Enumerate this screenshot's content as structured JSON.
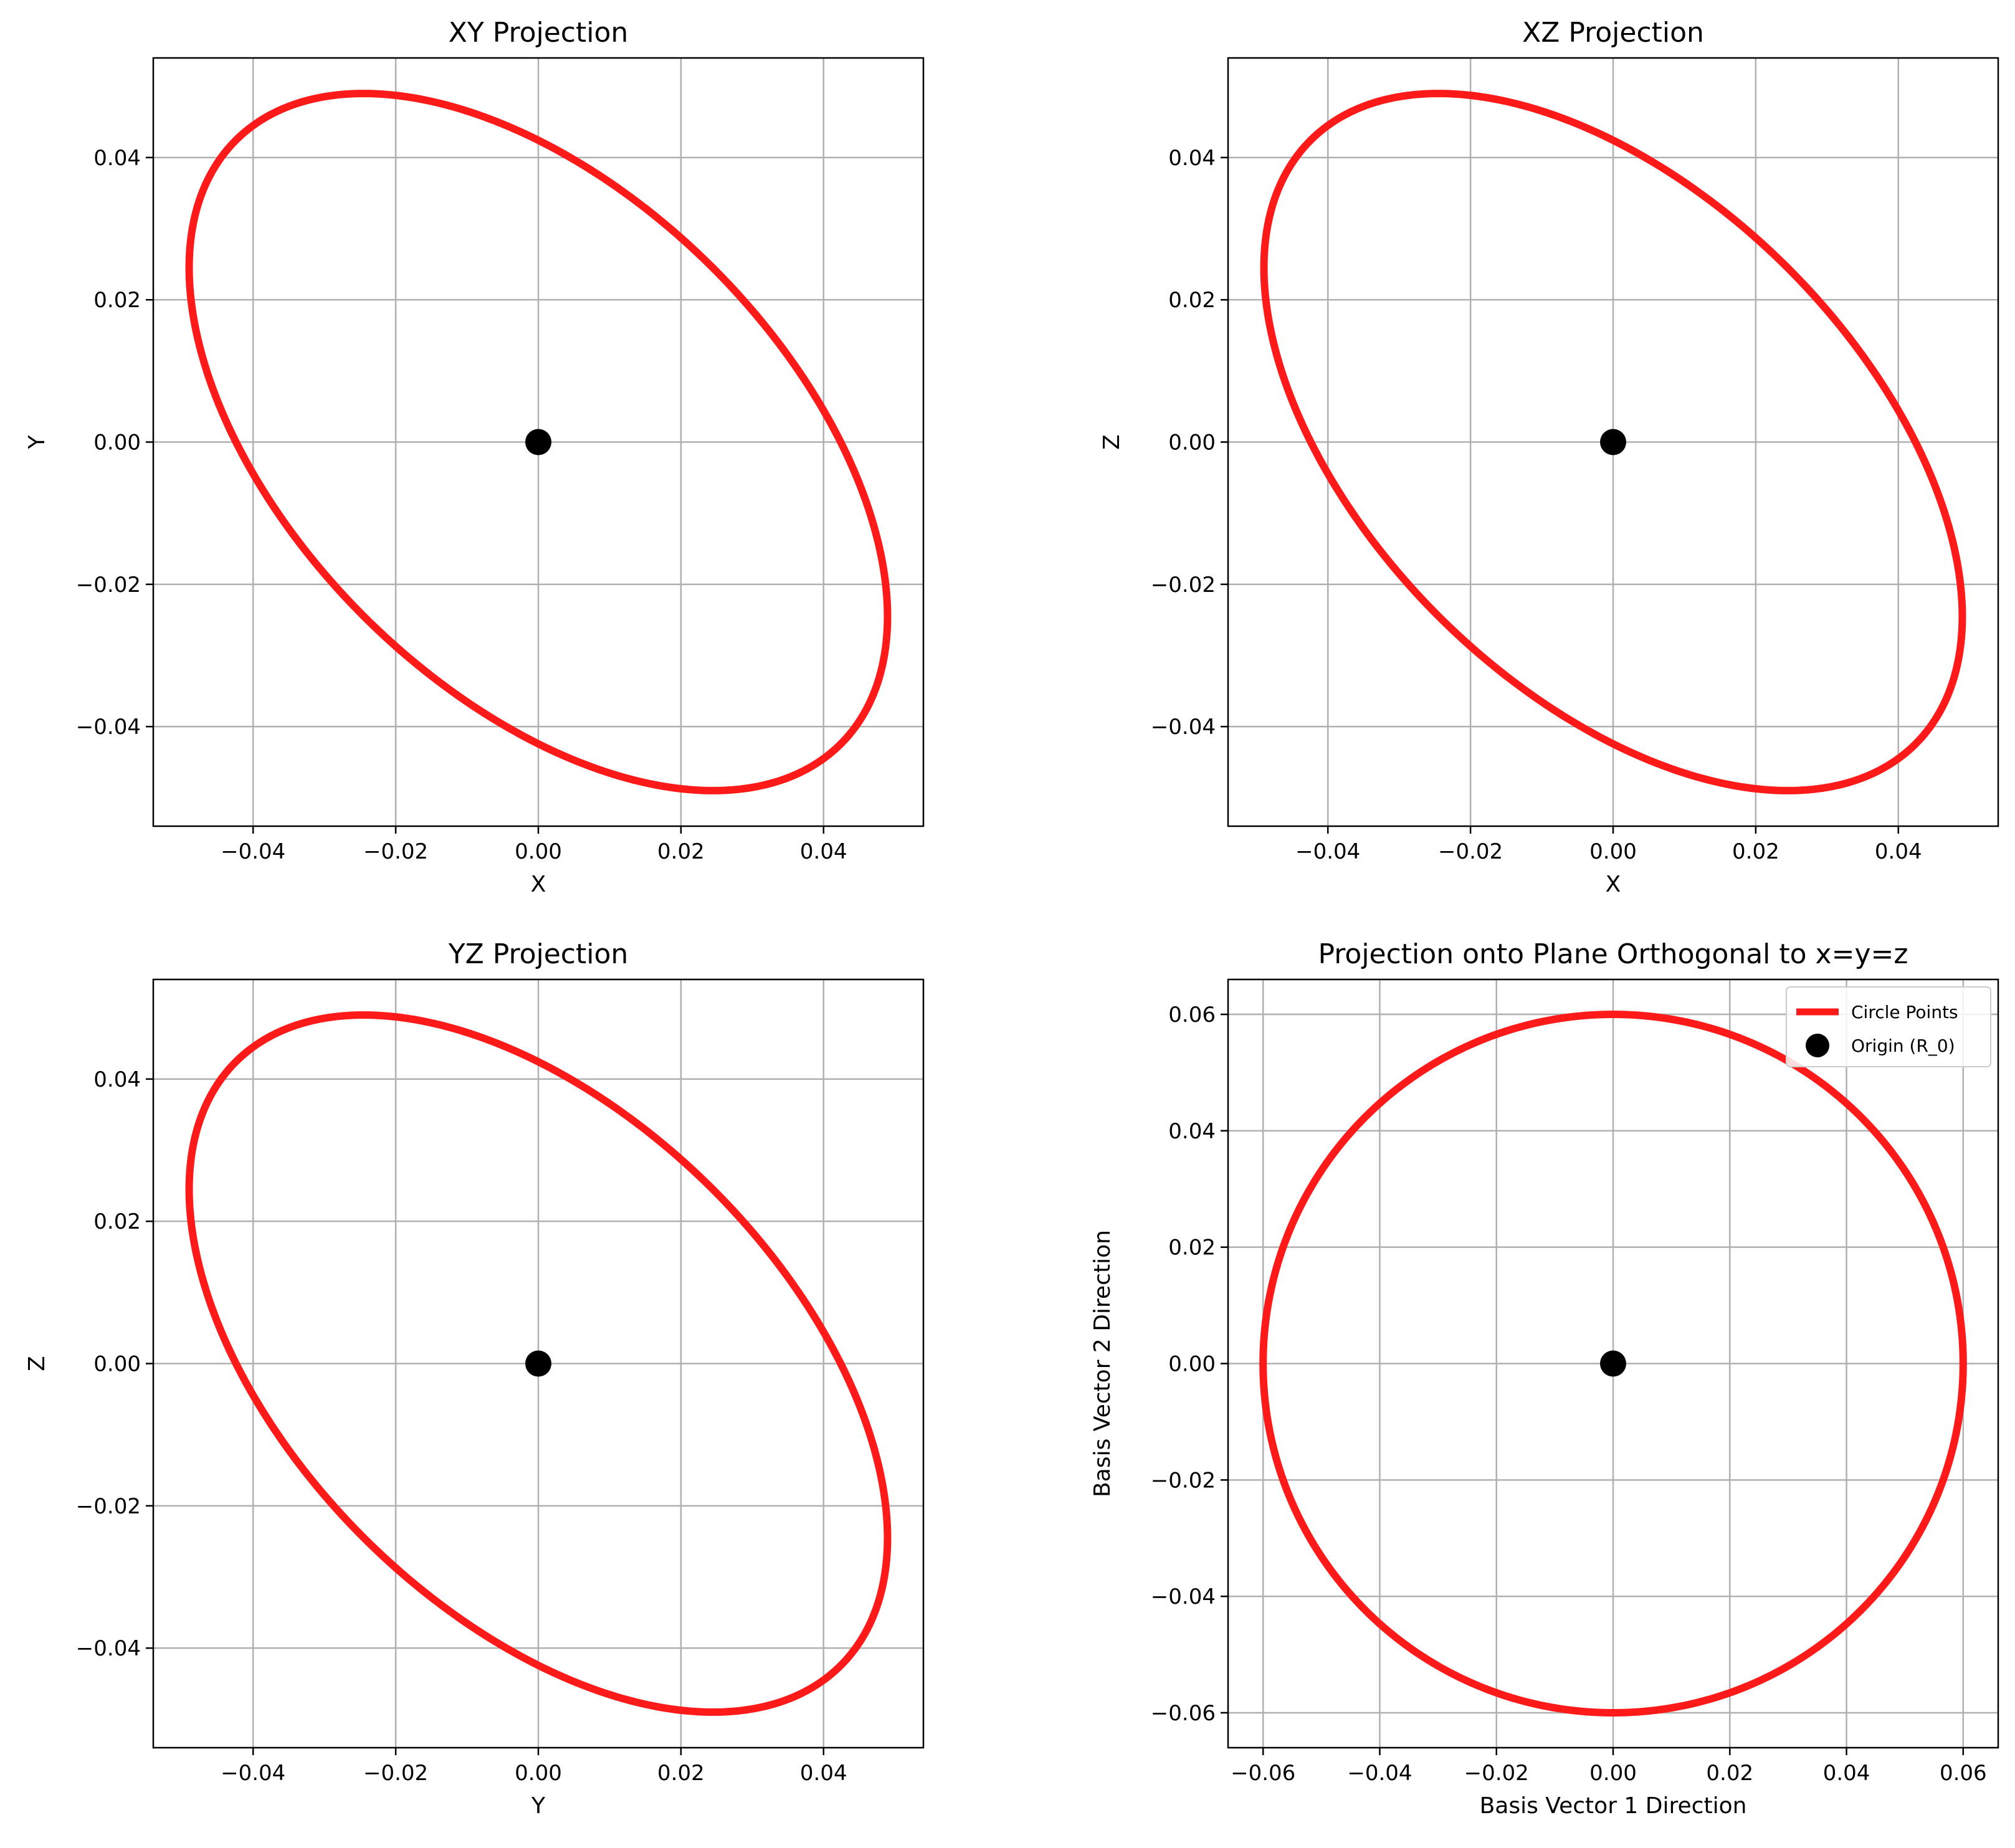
{
  "colors": {
    "curve": "#ff1a1a",
    "origin": "#000000",
    "grid": "#b0b0b0"
  },
  "chart_data": [
    {
      "type": "line",
      "title": "XY Projection",
      "xlabel": "X",
      "ylabel": "Y",
      "xlim": [
        -0.054,
        0.054
      ],
      "ylim": [
        -0.054,
        0.054
      ],
      "xticks": [
        -0.04,
        -0.02,
        0.0,
        0.02,
        0.04
      ],
      "yticks": [
        -0.04,
        -0.02,
        0.0,
        0.02,
        0.04
      ],
      "xtick_labels": [
        "−0.04",
        "−0.02",
        "0.00",
        "0.02",
        "0.04"
      ],
      "ytick_labels": [
        "−0.04",
        "−0.02",
        "0.00",
        "0.02",
        "0.04"
      ],
      "grid": true,
      "curve": {
        "kind": "ellipse",
        "center": [
          0,
          0
        ],
        "u": [
          -0.0245,
          0.049
        ],
        "v": [
          0.0424,
          0.0
        ]
      },
      "origin": [
        0,
        0
      ]
    },
    {
      "type": "line",
      "title": "XZ Projection",
      "xlabel": "X",
      "ylabel": "Z",
      "xlim": [
        -0.054,
        0.054
      ],
      "ylim": [
        -0.054,
        0.054
      ],
      "xticks": [
        -0.04,
        -0.02,
        0.0,
        0.02,
        0.04
      ],
      "yticks": [
        -0.04,
        -0.02,
        0.0,
        0.02,
        0.04
      ],
      "xtick_labels": [
        "−0.04",
        "−0.02",
        "0.00",
        "0.02",
        "0.04"
      ],
      "ytick_labels": [
        "−0.04",
        "−0.02",
        "0.00",
        "0.02",
        "0.04"
      ],
      "grid": true,
      "curve": {
        "kind": "ellipse",
        "center": [
          0,
          0
        ],
        "u": [
          -0.0245,
          0.049
        ],
        "v": [
          0.0424,
          0.0
        ]
      },
      "origin": [
        0,
        0
      ]
    },
    {
      "type": "line",
      "title": "YZ Projection",
      "xlabel": "Y",
      "ylabel": "Z",
      "xlim": [
        -0.054,
        0.054
      ],
      "ylim": [
        -0.054,
        0.054
      ],
      "xticks": [
        -0.04,
        -0.02,
        0.0,
        0.02,
        0.04
      ],
      "yticks": [
        -0.04,
        -0.02,
        0.0,
        0.02,
        0.04
      ],
      "xtick_labels": [
        "−0.04",
        "−0.02",
        "0.00",
        "0.02",
        "0.04"
      ],
      "ytick_labels": [
        "−0.04",
        "−0.02",
        "0.00",
        "0.02",
        "0.04"
      ],
      "grid": true,
      "curve": {
        "kind": "ellipse",
        "center": [
          0,
          0
        ],
        "u": [
          -0.0245,
          0.049
        ],
        "v": [
          0.0424,
          0.0
        ]
      },
      "origin": [
        0,
        0
      ]
    },
    {
      "type": "line",
      "title": "Projection onto Plane Orthogonal to x=y=z",
      "xlabel": "Basis Vector 1 Direction",
      "ylabel": "Basis Vector 2 Direction",
      "xlim": [
        -0.066,
        0.066
      ],
      "ylim": [
        -0.066,
        0.066
      ],
      "xticks": [
        -0.06,
        -0.04,
        -0.02,
        0.0,
        0.02,
        0.04,
        0.06
      ],
      "yticks": [
        -0.06,
        -0.04,
        -0.02,
        0.0,
        0.02,
        0.04,
        0.06
      ],
      "xtick_labels": [
        "−0.06",
        "−0.04",
        "−0.02",
        "0.00",
        "0.02",
        "0.04",
        "0.06"
      ],
      "ytick_labels": [
        "−0.06",
        "−0.04",
        "−0.02",
        "0.00",
        "0.02",
        "0.04",
        "0.06"
      ],
      "grid": true,
      "curve": {
        "kind": "ellipse",
        "center": [
          0,
          0
        ],
        "u": [
          0.06,
          0.0
        ],
        "v": [
          0.0,
          0.06
        ]
      },
      "origin": [
        0,
        0
      ],
      "legend": {
        "placement": "upper right",
        "entries": [
          "Circle Points",
          "Origin (R_0)"
        ]
      }
    }
  ]
}
